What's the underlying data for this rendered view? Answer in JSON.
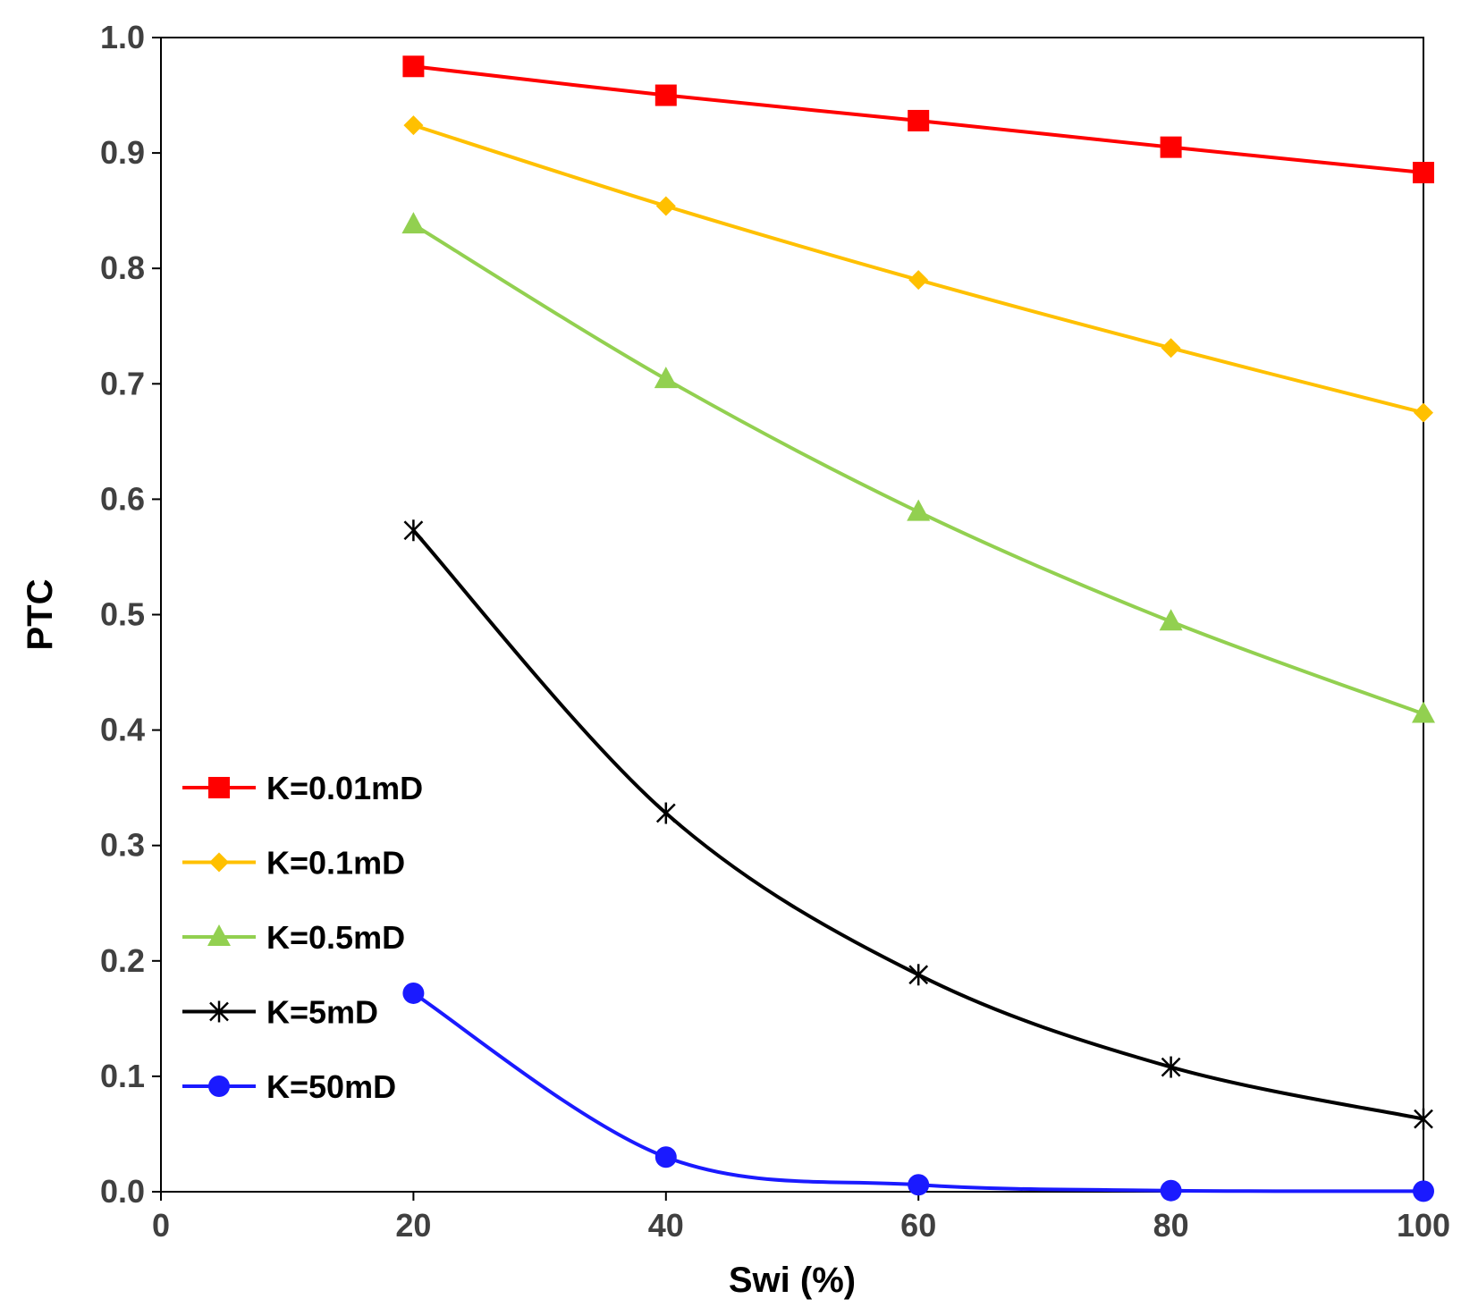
{
  "chart_data": {
    "type": "line",
    "title": "",
    "xlabel": "Swi (%)",
    "ylabel": "PTC",
    "xlim": [
      0,
      100
    ],
    "ylim": [
      0,
      1.0
    ],
    "x_ticks": [
      "0",
      "20",
      "40",
      "60",
      "80",
      "100"
    ],
    "y_ticks": [
      "0.0",
      "0.1",
      "0.2",
      "0.3",
      "0.4",
      "0.5",
      "0.6",
      "0.7",
      "0.8",
      "0.9",
      "1.0"
    ],
    "grid": false,
    "legend_position": "lower-left",
    "x": [
      20,
      40,
      60,
      80,
      100
    ],
    "series": [
      {
        "name": "K=0.01mD",
        "color": "#ff0000",
        "marker": "square",
        "values": [
          0.975,
          0.95,
          0.928,
          0.905,
          0.883
        ]
      },
      {
        "name": "K=0.1mD",
        "color": "#ffc000",
        "marker": "diamond",
        "values": [
          0.924,
          0.854,
          0.79,
          0.731,
          0.675
        ]
      },
      {
        "name": "K=0.5mD",
        "color": "#92d050",
        "marker": "triangle",
        "values": [
          0.838,
          0.704,
          0.589,
          0.494,
          0.414
        ]
      },
      {
        "name": "K=5mD",
        "color": "#000000",
        "marker": "star",
        "values": [
          0.573,
          0.328,
          0.188,
          0.108,
          0.063
        ]
      },
      {
        "name": "K=50mD",
        "color": "#1a1aff",
        "marker": "circle",
        "values": [
          0.172,
          0.03,
          0.006,
          0.001,
          0.0005
        ]
      }
    ]
  }
}
